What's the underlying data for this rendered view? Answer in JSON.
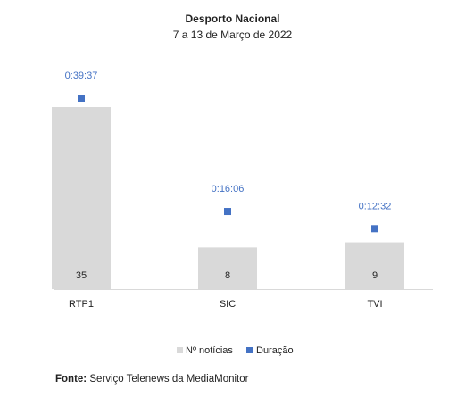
{
  "chart_data": {
    "type": "bar",
    "title": "Desporto Nacional",
    "subtitle": "7 a 13 de Março de 2022",
    "categories": [
      "RTP1",
      "SIC",
      "TVI"
    ],
    "series": [
      {
        "name": "Nº notícias",
        "type": "bar",
        "color": "#d9d9d9",
        "values": [
          35,
          8,
          9
        ],
        "labels": [
          "35",
          "8",
          "9"
        ]
      },
      {
        "name": "Duração",
        "type": "scatter",
        "color": "#4472c4",
        "values_seconds": [
          2377,
          966,
          752
        ],
        "labels": [
          "0:39:37",
          "0:16:06",
          "0:12:32"
        ]
      }
    ],
    "legend_position": "bottom",
    "grid": false
  },
  "source": {
    "label": "Fonte:",
    "text": "Serviço Telenews da MediaMonitor"
  }
}
